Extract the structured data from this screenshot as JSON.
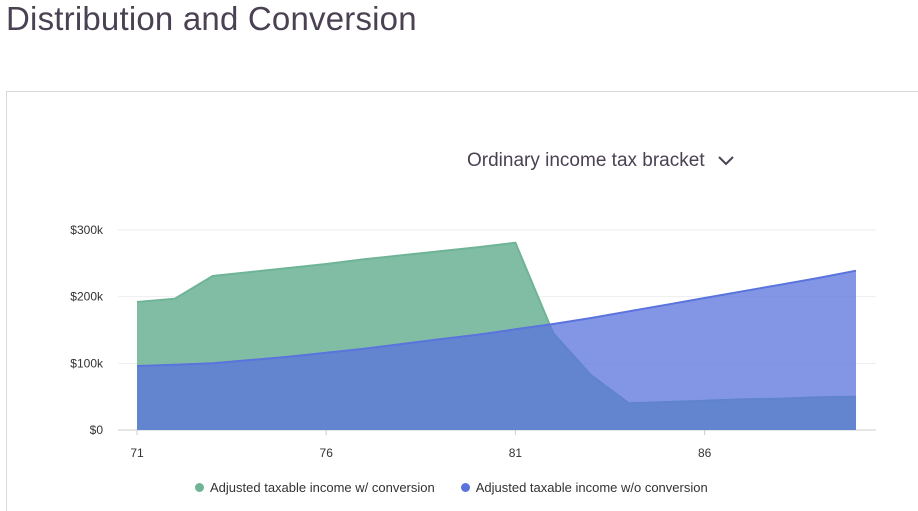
{
  "header": {
    "title": "Distribution and Conversion"
  },
  "controls": {
    "bracket_selector": "Ordinary income tax bracket",
    "chevron_icon": "chevron-down-icon"
  },
  "colors": {
    "with_conversion": "#6fb497",
    "without_conversion": "#5a73dd",
    "axis_text": "#333333",
    "grid": "#eeeeee"
  },
  "chart_data": {
    "type": "area",
    "x_ticks": [
      "71",
      "76",
      "81",
      "86"
    ],
    "y_ticks": [
      "$0",
      "$100k",
      "$200k",
      "$300k"
    ],
    "x_range": [
      71,
      90
    ],
    "ylim": [
      0,
      300000
    ],
    "legend_position": "bottom",
    "series": [
      {
        "name": "Adjusted taxable income w/ conversion",
        "x": [
          71,
          72,
          73,
          74,
          75,
          76,
          77,
          78,
          79,
          80,
          81,
          82,
          83,
          84,
          85,
          86,
          87,
          88,
          89,
          90
        ],
        "values": [
          192000,
          197000,
          231000,
          237000,
          243000,
          249000,
          256000,
          262000,
          268000,
          274000,
          281000,
          145000,
          82000,
          40000,
          42000,
          44000,
          46000,
          47000,
          49000,
          50000
        ]
      },
      {
        "name": "Adjusted taxable income w/o conversion",
        "x": [
          71,
          72,
          73,
          74,
          75,
          76,
          77,
          78,
          79,
          80,
          81,
          82,
          83,
          84,
          85,
          86,
          87,
          88,
          89,
          90
        ],
        "values": [
          96000,
          98000,
          100000,
          105000,
          110000,
          116000,
          122000,
          129000,
          136000,
          143000,
          151000,
          159000,
          168000,
          178000,
          188000,
          198000,
          208000,
          218000,
          228000,
          239000
        ]
      }
    ]
  }
}
